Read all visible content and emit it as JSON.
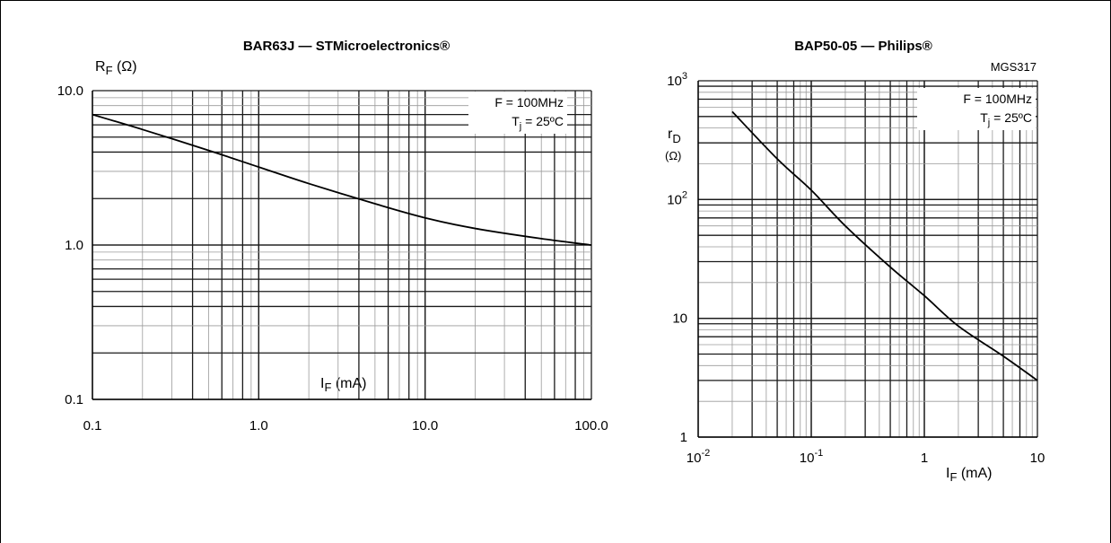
{
  "colors": {
    "grid_major": "#1a1a1a",
    "grid_minor": "#9a9a9a",
    "curve": "#000000",
    "background": "#ffffff"
  },
  "chart_data": [
    {
      "type": "line",
      "title": "BAR63J — STMicroelectronics®",
      "xlabel": {
        "sym": "I",
        "sub": "F",
        "unit": " (mA)"
      },
      "ylabel": {
        "sym": "R",
        "sub": "F",
        "unit": " (Ω)"
      },
      "xscale": "log",
      "yscale": "log",
      "xlim": [
        0.1,
        100.0
      ],
      "ylim": [
        0.1,
        10.0
      ],
      "x_ticks": [
        "0.1",
        "1.0",
        "10.0",
        "100.0"
      ],
      "y_ticks": [
        "10.0",
        "1.0",
        "0.1"
      ],
      "grid": true,
      "annotation": {
        "line1": "F = 100MHz",
        "line2_sym": "T",
        "line2_sub": "j",
        "line2_rest": " = 25ºC",
        "placement": "top-right"
      },
      "series": [
        {
          "x": [
            0.1,
            0.2,
            0.5,
            1.0,
            2.0,
            5.0,
            10.0,
            20.0,
            50.0,
            100.0
          ],
          "y": [
            7.0,
            5.6,
            4.1,
            3.2,
            2.5,
            1.85,
            1.5,
            1.28,
            1.1,
            1.0
          ]
        }
      ]
    },
    {
      "type": "line",
      "title": "BAP50-05 — Philips®",
      "code": "MGS317",
      "xlabel": {
        "sym": "I",
        "sub": "F",
        "unit": " (mA)"
      },
      "ylabel": {
        "sym": "r",
        "sub": "D",
        "unit": "(Ω)"
      },
      "xscale": "log",
      "yscale": "log",
      "xlim": [
        0.01,
        10
      ],
      "ylim": [
        1,
        1000
      ],
      "x_ticks": [
        {
          "base": "10",
          "exp": "-2"
        },
        {
          "base": "10",
          "exp": "-1"
        },
        {
          "base": "1",
          "exp": ""
        },
        {
          "base": "10",
          "exp": ""
        }
      ],
      "y_ticks": [
        {
          "base": "10",
          "exp": "3"
        },
        {
          "base": "10",
          "exp": "2"
        },
        {
          "base": "10",
          "exp": ""
        },
        {
          "base": "1",
          "exp": ""
        }
      ],
      "grid": true,
      "annotation": {
        "line1": "F = 100MHz",
        "line2_sym": "T",
        "line2_sub": "j",
        "line2_rest": " = 25ºC",
        "placement": "top-right"
      },
      "series": [
        {
          "x": [
            0.02,
            0.05,
            0.1,
            0.2,
            0.5,
            1,
            2,
            5,
            10
          ],
          "y": [
            550,
            220,
            120,
            60,
            27,
            15.5,
            8.6,
            4.8,
            3.0
          ]
        }
      ]
    }
  ]
}
